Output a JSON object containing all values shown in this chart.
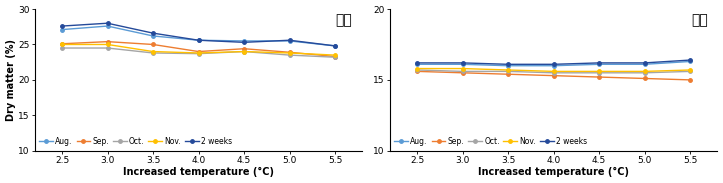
{
  "x": [
    2.5,
    3.0,
    3.5,
    4.0,
    4.5,
    5.0,
    5.5
  ],
  "left_title": "과피",
  "right_title": "과육",
  "xlabel": "Increased temperature (°C)",
  "ylabel": "Dry matter (%)",
  "left_ylim": [
    10,
    30
  ],
  "right_ylim": [
    10,
    20
  ],
  "left_yticks": [
    10,
    15,
    20,
    25,
    30
  ],
  "right_yticks": [
    10,
    15,
    20
  ],
  "series_labels": [
    "Aug.",
    "Sep.",
    "Oct.",
    "Nov.",
    "2 weeks"
  ],
  "series_colors": [
    "#5B9BD5",
    "#ED7D31",
    "#A5A5A5",
    "#FFC000",
    "#254A9A"
  ],
  "left_data": {
    "Aug.": [
      27.1,
      27.6,
      26.2,
      25.6,
      25.5,
      25.5,
      24.8
    ],
    "Sep.": [
      25.1,
      25.4,
      25.0,
      24.0,
      24.4,
      23.9,
      23.3
    ],
    "Oct.": [
      24.5,
      24.5,
      23.8,
      23.7,
      24.0,
      23.5,
      23.2
    ],
    "Nov.": [
      25.0,
      25.0,
      24.0,
      23.8,
      24.0,
      23.8,
      23.5
    ],
    "2 weeks": [
      27.6,
      28.0,
      26.6,
      25.6,
      25.3,
      25.6,
      24.8
    ]
  },
  "right_data": {
    "Aug.": [
      16.1,
      16.1,
      16.0,
      16.0,
      16.1,
      16.1,
      16.3
    ],
    "Sep.": [
      15.6,
      15.5,
      15.4,
      15.3,
      15.2,
      15.1,
      15.0
    ],
    "Oct.": [
      15.7,
      15.6,
      15.6,
      15.5,
      15.5,
      15.5,
      15.6
    ],
    "Nov.": [
      15.8,
      15.8,
      15.7,
      15.6,
      15.6,
      15.6,
      15.7
    ],
    "2 weeks": [
      16.2,
      16.2,
      16.1,
      16.1,
      16.2,
      16.2,
      16.4
    ]
  }
}
